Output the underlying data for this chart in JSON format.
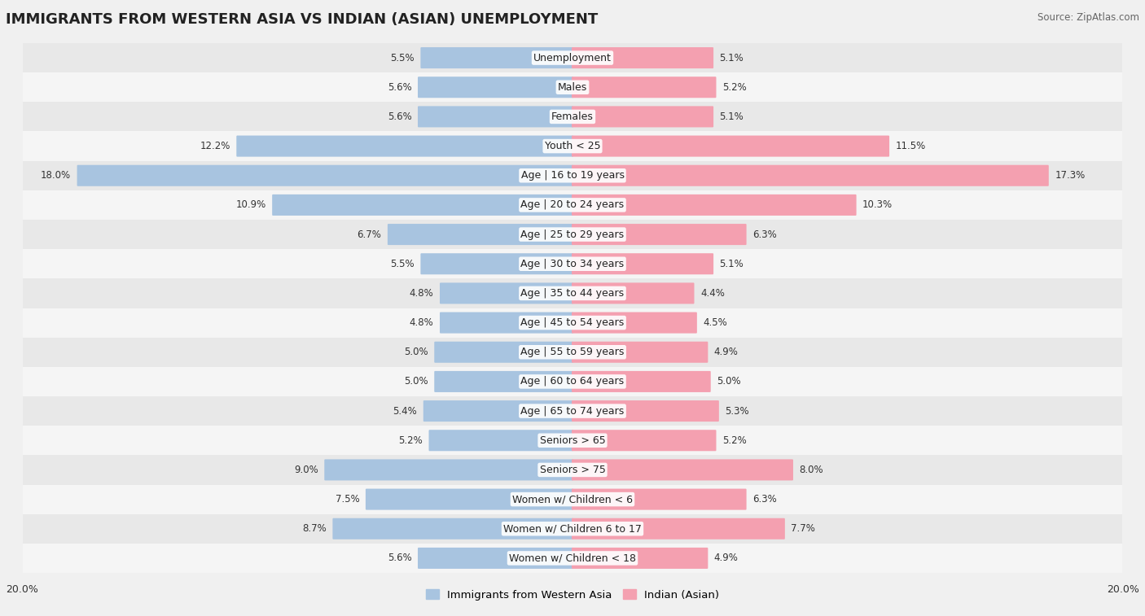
{
  "title": "IMMIGRANTS FROM WESTERN ASIA VS INDIAN (ASIAN) UNEMPLOYMENT",
  "source": "Source: ZipAtlas.com",
  "categories": [
    "Unemployment",
    "Males",
    "Females",
    "Youth < 25",
    "Age | 16 to 19 years",
    "Age | 20 to 24 years",
    "Age | 25 to 29 years",
    "Age | 30 to 34 years",
    "Age | 35 to 44 years",
    "Age | 45 to 54 years",
    "Age | 55 to 59 years",
    "Age | 60 to 64 years",
    "Age | 65 to 74 years",
    "Seniors > 65",
    "Seniors > 75",
    "Women w/ Children < 6",
    "Women w/ Children 6 to 17",
    "Women w/ Children < 18"
  ],
  "left_values": [
    5.5,
    5.6,
    5.6,
    12.2,
    18.0,
    10.9,
    6.7,
    5.5,
    4.8,
    4.8,
    5.0,
    5.0,
    5.4,
    5.2,
    9.0,
    7.5,
    8.7,
    5.6
  ],
  "right_values": [
    5.1,
    5.2,
    5.1,
    11.5,
    17.3,
    10.3,
    6.3,
    5.1,
    4.4,
    4.5,
    4.9,
    5.0,
    5.3,
    5.2,
    8.0,
    6.3,
    7.7,
    4.9
  ],
  "left_color": "#a8c4e0",
  "right_color": "#f4a0b0",
  "max_value": 20.0,
  "background_color": "#f0f0f0",
  "row_bg_even": "#f5f5f5",
  "row_bg_odd": "#e8e8e8",
  "left_label": "Immigrants from Western Asia",
  "right_label": "Indian (Asian)",
  "title_fontsize": 13,
  "value_fontsize": 8.5,
  "category_fontsize": 9,
  "legend_fontsize": 9.5
}
